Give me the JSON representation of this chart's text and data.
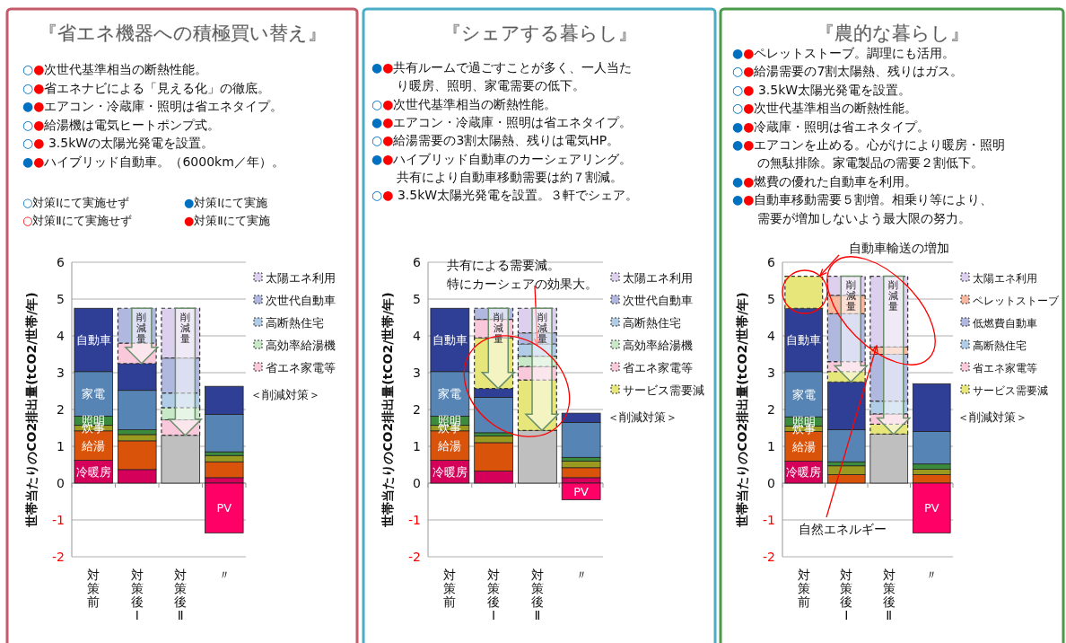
{
  "chart_data": [
    {
      "type": "other",
      "title": "『省エネ機器への積極買い替え』",
      "annotations": [
        "○●次世代基準相当の断熱性能。",
        "○●省エネナビによる「見える化」の徹底。",
        "●●エアコン・冷蔵庫・照明は省エネタイプ。",
        "○●給湯機は電気ヒートポンプ式。",
        "○● 3.5kWの太陽光発電を設置。",
        "●●ハイブリッド自動車。（6000km／年）。",
        "○対策Ⅰにて実施せず",
        "●対策Ⅰにて実施",
        "○対策Ⅱにて実施せず",
        "●対策Ⅱにて実施"
      ]
    },
    {
      "type": "bar",
      "stacked": true,
      "categories": [
        "対策前",
        "対策後Ⅰ",
        "対策後Ⅱ",
        "〃"
      ],
      "ylim": [
        -2,
        6
      ],
      "yticks": [
        -2,
        -1,
        0,
        1,
        2,
        3,
        4,
        5,
        6
      ],
      "grid": "y",
      "legend": "right",
      "legend_title": "＜削減対策＞",
      "ylabel": "世帯当たりのCO2排出量(tCO2/世帯/年)",
      "series": [
        {
          "name": "冷暖房",
          "color": "#d5005a",
          "values": [
            0.62,
            0.37,
            null,
            0.15
          ]
        },
        {
          "name": "給湯",
          "color": "#d9540a",
          "values": [
            0.8,
            0.78,
            null,
            0.43
          ]
        },
        {
          "name": "炊事",
          "color": "#9a9a20",
          "values": [
            0.15,
            0.17,
            null,
            0.17
          ]
        },
        {
          "name": "照明",
          "color": "#3c8a3c",
          "values": [
            0.25,
            0.13,
            null,
            0.1
          ]
        },
        {
          "name": "家電",
          "color": "#5685b5",
          "values": [
            1.21,
            1.07,
            null,
            1.02
          ]
        },
        {
          "name": "自動車",
          "color": "#2f3f95",
          "values": [
            1.72,
            0.73,
            null,
            0.76
          ]
        },
        {
          "color": "#bfbfbf",
          "values": [
            null,
            null,
            1.3,
            null
          ]
        },
        {
          "name": "PV",
          "color": "#ff0066",
          "values": [
            null,
            null,
            null,
            -1.35
          ]
        },
        {
          "name": "省エネ家電等",
          "color": "#f9c8da",
          "line_style": "dashed",
          "values": [
            null,
            0.55,
            0.42,
            null
          ]
        },
        {
          "name": "高効率給湯機",
          "color": "#c8e8c8",
          "line_style": "dashed",
          "values": [
            null,
            null,
            0.33,
            null
          ]
        },
        {
          "name": "高断熱住宅",
          "color": "#b0cce6",
          "line_style": "dashed",
          "values": [
            null,
            null,
            0.4,
            null
          ]
        },
        {
          "name": "次世代自動車",
          "color": "#b0b8e0",
          "line_style": "dashed",
          "values": [
            null,
            0.95,
            0.95,
            null
          ]
        },
        {
          "name": "太陽エネ利用",
          "color": "#ddd0ee",
          "line_style": "dashed",
          "values": [
            null,
            null,
            1.35,
            null
          ]
        }
      ],
      "annotations": [
        {
          "text": "削減量",
          "x": "対策後Ⅰ",
          "y": 4.75
        },
        {
          "text": "削減量",
          "x": "対策後Ⅱ",
          "y": 4.75
        }
      ]
    },
    {
      "type": "other",
      "title": "『シェアする暮らし』",
      "annotations": [
        "●●共有ルームで過ごすことが多く、一人当たり暖房、照明、家電需要の低下。",
        "○●次世代基準相当の断熱性能。",
        "●●エアコン・冷蔵庫・照明は省エネタイプ。",
        "○●給湯需要の3割太陽熱、残りは電気HP。",
        "●●ハイブリッド自動車のカーシェアリング。共有により自動車移動需要は約７割減。",
        "○● 3.5kW太陽光発電を設置。３軒でシェア。"
      ]
    },
    {
      "type": "bar",
      "stacked": true,
      "categories": [
        "対策前",
        "対策後Ⅰ",
        "対策後Ⅱ",
        "〃"
      ],
      "ylim": [
        -2,
        6
      ],
      "yticks": [
        -2,
        -1,
        0,
        1,
        2,
        3,
        4,
        5,
        6
      ],
      "grid": "y",
      "legend": "right",
      "legend_title": "＜削減対策＞",
      "ylabel": "世帯当たりのCO2排出量(tCO2/世帯/年)",
      "series": [
        {
          "name": "冷暖房",
          "color": "#d5005a",
          "values": [
            0.62,
            0.33,
            null,
            0.15
          ]
        },
        {
          "name": "給湯",
          "color": "#d9540a",
          "values": [
            0.8,
            0.77,
            null,
            0.27
          ]
        },
        {
          "name": "炊事",
          "color": "#9a9a20",
          "values": [
            0.15,
            0.18,
            null,
            0.18
          ]
        },
        {
          "name": "照明",
          "color": "#3c8a3c",
          "values": [
            0.25,
            0.09,
            null,
            0.1
          ]
        },
        {
          "name": "家電",
          "color": "#5685b5",
          "values": [
            1.21,
            0.96,
            null,
            0.95
          ]
        },
        {
          "name": "自動車",
          "color": "#2f3f95",
          "values": [
            1.72,
            0.24,
            null,
            0.25
          ]
        },
        {
          "color": "#bfbfbf",
          "values": [
            null,
            null,
            1.43,
            null
          ]
        },
        {
          "name": "PV",
          "color": "#ff0066",
          "values": [
            null,
            null,
            null,
            -0.45
          ]
        },
        {
          "name": "サービス需要減",
          "color": "#e6e67a",
          "line_style": "dashed",
          "values": [
            null,
            1.38,
            1.37,
            null
          ]
        },
        {
          "name": "省エネ家電等",
          "color": "#f9c8da",
          "line_style": "dashed",
          "values": [
            null,
            0.5,
            0.37,
            null
          ]
        },
        {
          "name": "高効率給湯機",
          "color": "#c8e8c8",
          "line_style": "dashed",
          "values": [
            null,
            null,
            0.28,
            null
          ]
        },
        {
          "name": "高断熱住宅",
          "color": "#b0cce6",
          "line_style": "dashed",
          "values": [
            null,
            null,
            0.33,
            null
          ]
        },
        {
          "name": "次世代自動車",
          "color": "#b0b8e0",
          "line_style": "dashed",
          "values": [
            null,
            0.3,
            0.3,
            null
          ]
        },
        {
          "name": "太陽エネ利用",
          "color": "#ddd0ee",
          "line_style": "dashed",
          "values": [
            null,
            null,
            0.67,
            null
          ]
        }
      ],
      "annotations": [
        "共有による需要減。",
        {
          "text": "特にカーシェアの効果大。",
          "x": "対策後Ⅱ",
          "y": 3.75
        },
        {
          "text": "削減量",
          "x": "対策後Ⅰ",
          "y": 4.75
        },
        {
          "text": "削減量",
          "x": "対策後Ⅱ",
          "y": 4.75
        }
      ]
    },
    {
      "type": "other",
      "title": "『農的な暮らし』",
      "annotations": [
        "●●ペレットストーブ。調理にも活用。",
        "○●給湯需要の7割太陽熱、残りはガス。",
        "○● 3.5kW太陽光発電を設置。",
        "○●次世代基準相当の断熱性能。",
        "●●冷蔵庫・照明は省エネタイプ。",
        "●●エアコンを止める。心がけにより暖房・照明の無駄排除。家電製品の需要２割低下。",
        "●●燃費の優れた自動車を利用。",
        "●●自動車移動需要５割増。相乗り等により、需要が増加しないよう最大限の努力。"
      ]
    },
    {
      "type": "bar",
      "stacked": true,
      "categories": [
        "対策前",
        "対策後Ⅰ",
        "対策後Ⅱ",
        "〃"
      ],
      "ylim": [
        -2,
        6
      ],
      "yticks": [
        -2,
        -1,
        0,
        1,
        2,
        3,
        4,
        5,
        6
      ],
      "grid": "y",
      "legend": "right",
      "legend_title": "＜削減対策＞",
      "ylabel": "世帯当たりのCO2排出量(tCO2/世帯/年)",
      "series": [
        {
          "name": "冷暖房",
          "color": "#d5005a",
          "values": [
            0.6,
            null,
            null,
            null
          ]
        },
        {
          "name": "給湯",
          "color": "#d9540a",
          "values": [
            0.8,
            0.23,
            null,
            0.23
          ]
        },
        {
          "name": "炊事",
          "color": "#9a9a20",
          "values": [
            0.15,
            0.24,
            null,
            0.15
          ]
        },
        {
          "name": "照明",
          "color": "#3c8a3c",
          "values": [
            0.25,
            0.11,
            null,
            0.14
          ]
        },
        {
          "name": "家電",
          "color": "#5685b5",
          "values": [
            1.23,
            0.87,
            null,
            0.88
          ]
        },
        {
          "name": "自動車",
          "color": "#2f3f95",
          "values": [
            1.72,
            1.3,
            null,
            1.3
          ]
        },
        {
          "color": "#bfbfbf",
          "values": [
            null,
            null,
            1.33,
            null
          ]
        },
        {
          "name": "PV",
          "color": "#ff0066",
          "values": [
            null,
            null,
            null,
            -1.35
          ]
        },
        {
          "name": "サービス需要減",
          "color": "#e6e67a",
          "line_style": "dashed",
          "values": [
            0.87,
            0.28,
            0.27,
            null
          ]
        },
        {
          "name": "省エネ家電等",
          "color": "#f9c8da",
          "line_style": "dashed",
          "values": [
            null,
            0.27,
            0.28,
            null
          ]
        },
        {
          "name": "高断熱住宅",
          "color": "#b0cce6",
          "line_style": "dashed",
          "values": [
            null,
            null,
            0.35,
            null
          ]
        },
        {
          "name": "低燃費自動車",
          "color": "#b0b8e0",
          "line_style": "dashed",
          "values": [
            null,
            1.3,
            1.27,
            null
          ]
        },
        {
          "name": "ペレットストーブ",
          "color": "#f8b8a0",
          "line_style": "dashed",
          "values": [
            null,
            0.5,
            0.2,
            null
          ]
        },
        {
          "name": "太陽エネ利用",
          "color": "#ddd0ee",
          "line_style": "dashed",
          "values": [
            null,
            0.52,
            1.92,
            null
          ]
        }
      ],
      "annotations": [
        "自動車輸送の増加",
        "自然エネルギー",
        {
          "text": "削減量",
          "x": "対策後Ⅰ",
          "y": 5.62
        },
        {
          "text": "削減量",
          "x": "対策後Ⅱ",
          "y": 5.62
        }
      ]
    }
  ]
}
